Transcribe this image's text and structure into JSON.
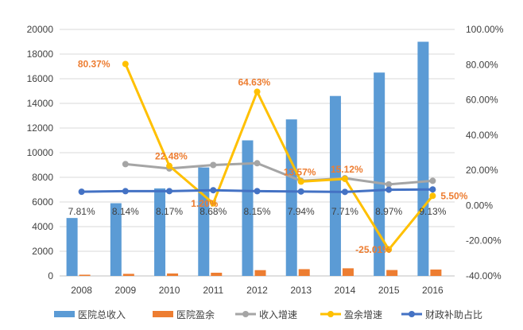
{
  "chart_data": {
    "type": "bar+line",
    "categories": [
      "2008",
      "2009",
      "2010",
      "2011",
      "2012",
      "2013",
      "2014",
      "2015",
      "2016"
    ],
    "left_axis": {
      "min": 0,
      "max": 20000,
      "step": 2000,
      "tick_labels": [
        "0",
        "2000",
        "4000",
        "6000",
        "8000",
        "10000",
        "12000",
        "14000",
        "16000",
        "18000",
        "20000"
      ]
    },
    "right_axis": {
      "min": -40,
      "max": 100,
      "step": 20,
      "tick_labels": [
        "-40.00%",
        "-20.00%",
        "0.00%",
        "20.00%",
        "40.00%",
        "60.00%",
        "80.00%",
        "100.00%"
      ]
    },
    "series": [
      {
        "name": "医院总收入",
        "kind": "bar",
        "axis": "left",
        "color": "#5B9BD5",
        "values": [
          4700,
          5900,
          7100,
          8800,
          11000,
          12700,
          14600,
          16500,
          19000
        ]
      },
      {
        "name": "医院盈余",
        "kind": "bar",
        "axis": "left",
        "color": "#ED7D31",
        "values": [
          100,
          170,
          200,
          260,
          470,
          550,
          620,
          480,
          520
        ]
      },
      {
        "name": "收入增速",
        "kind": "line",
        "axis": "right",
        "color": "#A5A5A5",
        "values": [
          null,
          23.5,
          21,
          23,
          24,
          14,
          15.5,
          12,
          14
        ]
      },
      {
        "name": "盈余增速",
        "kind": "line",
        "axis": "right",
        "color": "#FFC000",
        "values": [
          null,
          80.37,
          22.48,
          1.2,
          64.63,
          13.57,
          15.12,
          -25.01,
          5.5
        ],
        "data_labels": [
          null,
          "80.37%",
          "22.48%",
          "1.20%",
          "64.63%",
          "13.57%",
          "15.12%",
          "-25.01%",
          "5.50%"
        ]
      },
      {
        "name": "财政补助占比",
        "kind": "line",
        "axis": "right",
        "color": "#4472C4",
        "values": [
          7.81,
          8.14,
          8.17,
          8.68,
          8.15,
          7.94,
          7.71,
          8.97,
          9.13
        ],
        "data_labels": [
          "7.81%",
          "8.14%",
          "8.17%",
          "8.68%",
          "8.15%",
          "7.94%",
          "7.71%",
          "8.97%",
          "9.13%"
        ]
      }
    ],
    "legend_position": "bottom"
  }
}
